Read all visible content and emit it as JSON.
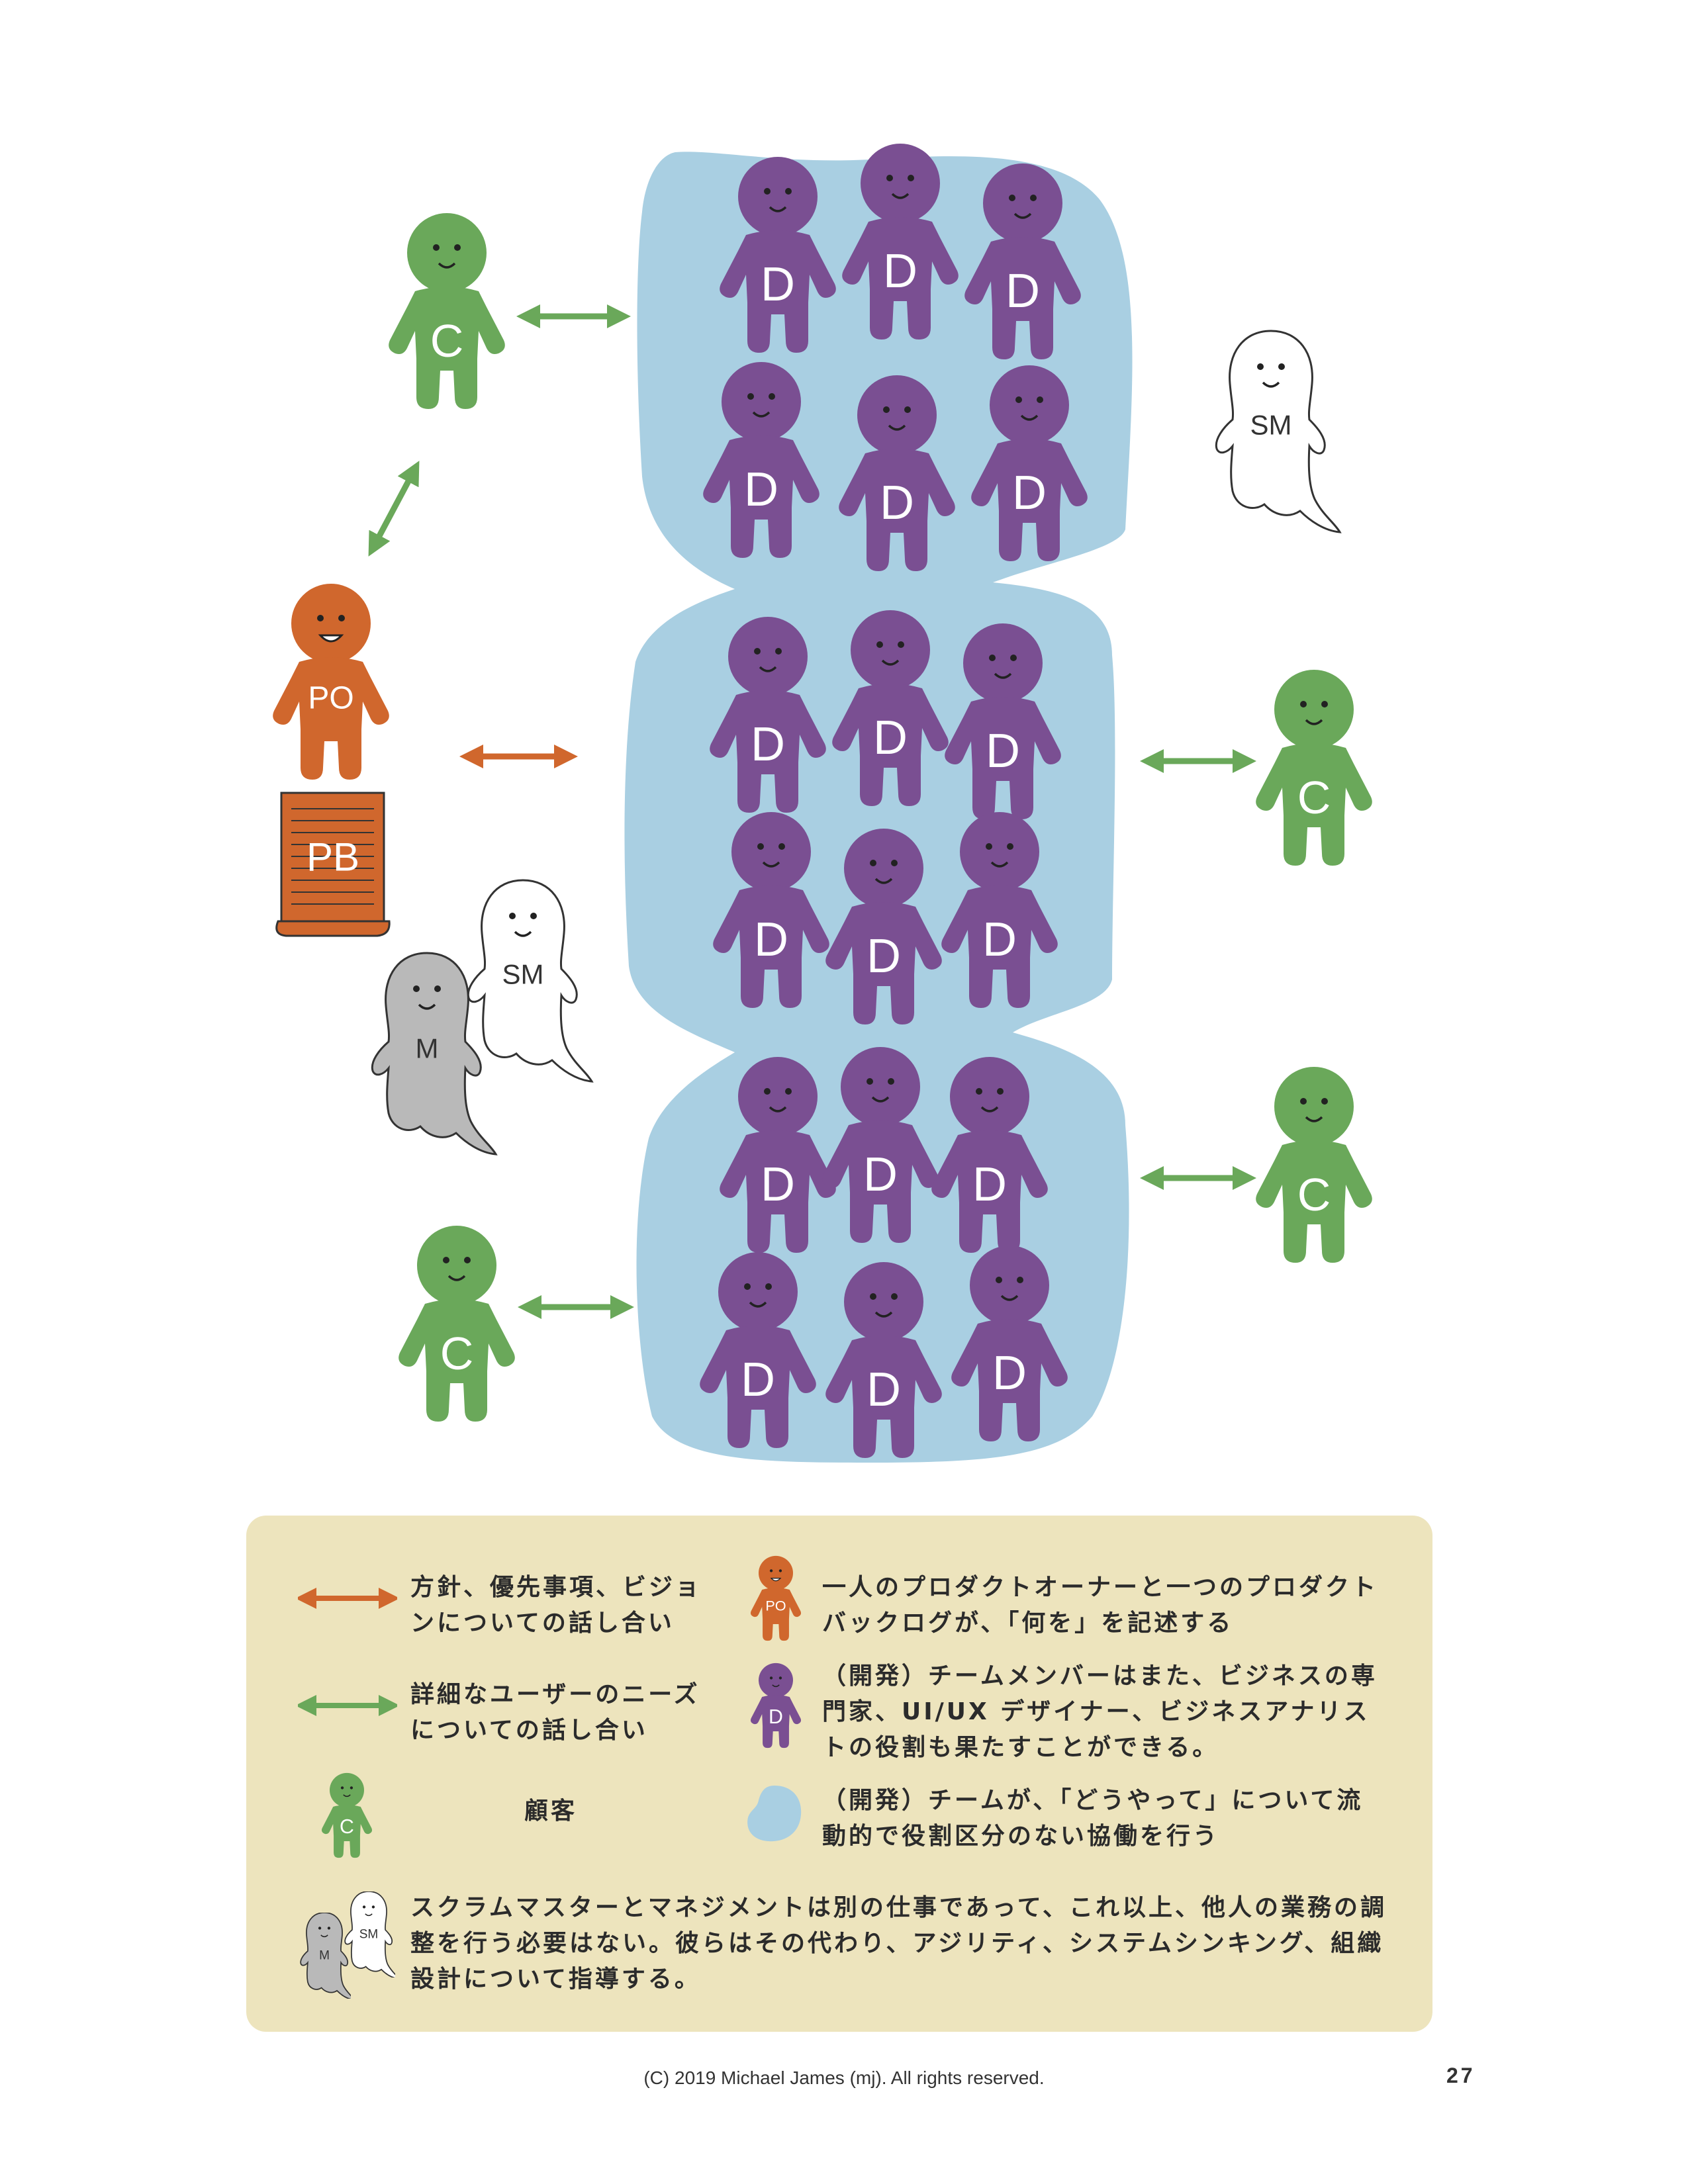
{
  "figures": {
    "developer_label": "D",
    "customer_label": "C",
    "product_owner_label": "PO",
    "scrum_master_label": "SM",
    "manager_label": "M",
    "backlog_label": "PB"
  },
  "colors": {
    "team_area": "#a9cfe2",
    "developer": "#7a4f92",
    "customer": "#6aa85a",
    "product_owner": "#d0672d",
    "manager": "#b9b9b9",
    "scrum_master": "#ffffff",
    "legend_background": "#ede4bd",
    "arrow_direction": "#d0672d",
    "arrow_needs": "#6aa85a"
  },
  "legend": {
    "orange_arrow_text": "方針、優先事項、ビジョンについての話し合い",
    "green_arrow_text": "詳細なユーザーのニーズについての話し合い",
    "customer_text": "顧客",
    "po_text": "一人のプロダクトオーナーと一つのプロダクトバックログが、「何を」を記述する",
    "developer_text": "（開発）チームメンバーはまた、ビジネスの専門家、UI/UX デザイナー、ビジネスアナリストの役割も果たすことができる。",
    "team_text": "（開発）チームが、「どうやって」について流動的で役割区分のない協働を行う",
    "sm_m_text": "スクラムマスターとマネジメントは別の仕事であって、これ以上、他人の業務の調整を行う必要はない。彼らはその代わり、アジリティ、システムシンキング、組織設計について指導する。"
  },
  "footer": {
    "copyright": "(C) 2019 Michael James (mj). All rights reserved.",
    "page_number": "27"
  }
}
